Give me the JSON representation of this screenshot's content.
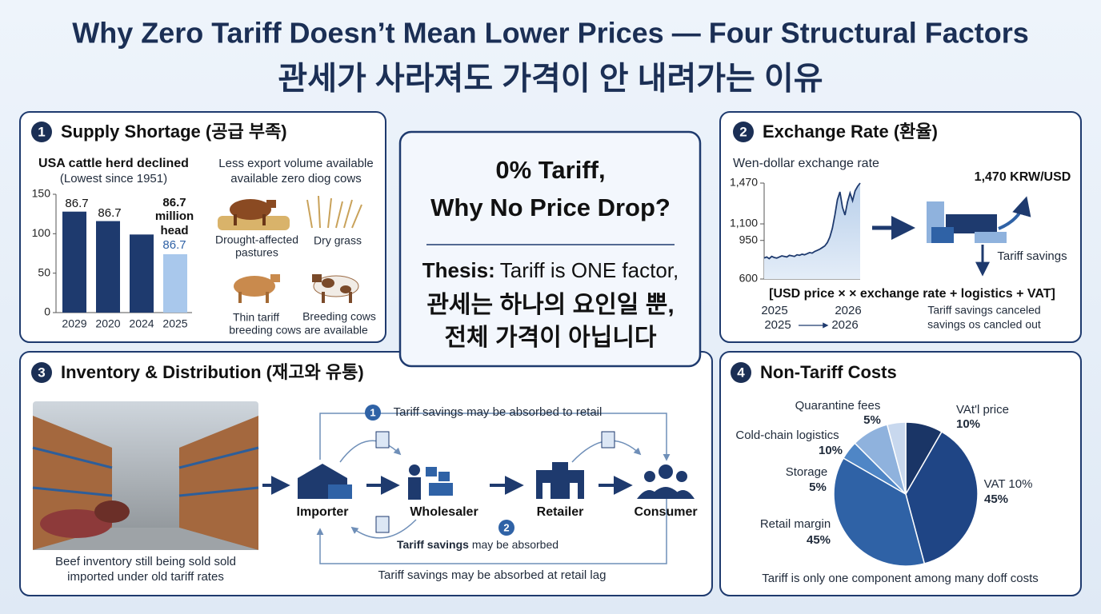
{
  "header": {
    "title": "Why Zero Tariff Doesn’t Mean Lower Prices — Four Structural Factors",
    "subtitle": "관세가 사라져도 가격이 안 내려가는 이유"
  },
  "center": {
    "heading": [
      "0% Tariff,",
      "Why No Price Drop?"
    ],
    "thesis_label": "Thesis:",
    "thesis": "Tariff is ONE factor,",
    "korean": [
      "관세는 하나의 요인일 뿐,",
      "전체 가격이 아닙니다"
    ]
  },
  "supply": {
    "number": "1",
    "title": "Supply Shortage (공급 부족)",
    "chart": {
      "type": "bar",
      "title": "USA cattle herd declined",
      "subtitle": "(Lowest since 1951)",
      "categories": [
        "2029",
        "2020",
        "2024",
        "2025"
      ],
      "values": [
        128,
        116,
        99,
        74
      ],
      "colors": [
        "#1e3a6e",
        "#1e3a6e",
        "#1e3a6e",
        "#a9c8ec"
      ],
      "ylim": [
        0,
        150
      ],
      "yticks": [
        0,
        50,
        100,
        150
      ],
      "annotations": [
        "86.7",
        "86.7",
        "86.7",
        "million",
        "head",
        "86.7"
      ]
    },
    "note": [
      "Less export volume available",
      "available zero diog cows"
    ],
    "captions": [
      "Drought-affected",
      "pastures",
      "Dry grass",
      "Thin tariff",
      "Breeding cows",
      "breeding cows are available"
    ]
  },
  "exchange": {
    "number": "2",
    "title": "Exchange Rate (환율)",
    "chart": {
      "type": "line",
      "title": "Wen-dollar exchange rate",
      "values": [
        790,
        800,
        785,
        805,
        795,
        790,
        800,
        810,
        805,
        800,
        815,
        810,
        805,
        820,
        815,
        825,
        820,
        830,
        840,
        835,
        850,
        860,
        870,
        885,
        900,
        930,
        980,
        1060,
        1180,
        1320,
        1390,
        1250,
        1180,
        1300,
        1380,
        1310,
        1400,
        1440,
        1470
      ],
      "color": "#1e3a6e",
      "ylim": [
        600,
        1470
      ],
      "yticks": [
        600,
        950,
        {
          "value": 1100,
          "label": "1,100"
        },
        {
          "value": 1470,
          "label": "1,470"
        }
      ],
      "x_tick_labels": [
        "2025",
        "2026"
      ]
    },
    "formula": "[USD price × × exchange rate + logistics + VAT]",
    "period": {
      "from": "2025",
      "to": "2026"
    },
    "rate": "1,470 KRW/USD",
    "savings": "Tariff savings",
    "outcome": [
      "Tariff savings canceled",
      "savings os cancled out"
    ]
  },
  "inventory": {
    "number": "3",
    "title": "Inventory & Distribution (재고와 유통)",
    "caption": [
      "Beef inventory still being sold sold",
      "imported under old tariff rates"
    ],
    "nodes": [
      "Importer",
      "Wholesaler",
      "Retailer",
      "Consumer"
    ],
    "loop_top": {
      "number": "1",
      "text": "Tariff savings may be absorbed to retail"
    },
    "loop_mid": {
      "number": "2",
      "bold": "Tariff savings",
      "text": " may be absorbed"
    },
    "loop_bottom": "Tariff savings may be absorbed at retail lag"
  },
  "costs": {
    "number": "4",
    "title": "Non-Tariff Costs",
    "chart": {
      "type": "pie",
      "categories": [
        "VAt'l price",
        "VAT 10%",
        "Retail margin",
        "Storage",
        "Cold-chain logistics",
        "Quarantine fees"
      ],
      "values": [
        10,
        45,
        45,
        5,
        10,
        5
      ],
      "value_labels": [
        "10%",
        "45%",
        "45%",
        "5%",
        "10%",
        "5%"
      ],
      "colors": [
        "#1a3566",
        "#1f4585",
        "#2f62a6",
        "#4f86c6",
        "#8fb2dd",
        "#c8d8ee"
      ]
    },
    "footer": "Tariff is only one component among many doff costs"
  }
}
